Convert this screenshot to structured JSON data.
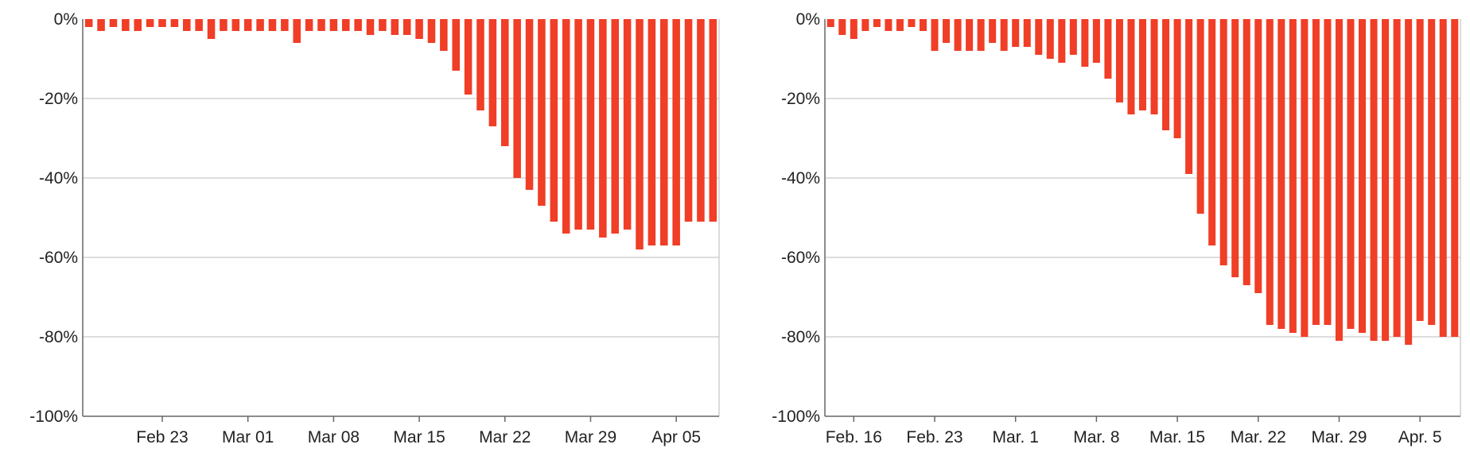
{
  "colors": {
    "bar": "#f03e27",
    "grid": "#d2d2d2",
    "axis": "#666666",
    "text": "#222222"
  },
  "chart_data": [
    {
      "type": "bar",
      "title": "",
      "xlabel": "",
      "ylabel": "",
      "ylim": [
        -100,
        0
      ],
      "grid": true,
      "legend": "none",
      "yticks": [
        "0%",
        "-20%",
        "-40%",
        "-60%",
        "-80%",
        "-100%"
      ],
      "ytick_values": [
        0,
        -20,
        -40,
        -60,
        -80,
        -100
      ],
      "xtick_labels": [
        "Feb 23",
        "Mar 01",
        "Mar 08",
        "Mar 15",
        "Mar 22",
        "Mar 29",
        "Apr 05"
      ],
      "xtick_positions": [
        6,
        13,
        20,
        27,
        34,
        41,
        48
      ],
      "values": [
        -2,
        -3,
        -2,
        -3,
        -3,
        -2,
        -2,
        -2,
        -3,
        -3,
        -5,
        -3,
        -3,
        -3,
        -3,
        -3,
        -3,
        -6,
        -3,
        -3,
        -3,
        -3,
        -3,
        -4,
        -3,
        -4,
        -4,
        -5,
        -6,
        -8,
        -13,
        -19,
        -23,
        -27,
        -32,
        -40,
        -43,
        -47,
        -51,
        -54,
        -53,
        -53,
        -55,
        -54,
        -53,
        -58,
        -57,
        -57,
        -57,
        -51,
        -51,
        -51
      ]
    },
    {
      "type": "bar",
      "title": "",
      "xlabel": "",
      "ylabel": "",
      "ylim": [
        -100,
        0
      ],
      "grid": true,
      "legend": "none",
      "yticks": [
        "0%",
        "-20%",
        "-40%",
        "-60%",
        "-80%",
        "-100%"
      ],
      "ytick_values": [
        0,
        -20,
        -40,
        -60,
        -80,
        -100
      ],
      "xtick_labels": [
        "Feb. 16",
        "Feb. 23",
        "Mar. 1",
        "Mar. 8",
        "Mar. 15",
        "Mar. 22",
        "Mar. 29",
        "Apr. 5"
      ],
      "xtick_positions": [
        2,
        9,
        16,
        23,
        30,
        37,
        44,
        51
      ],
      "values": [
        -2,
        -4,
        -5,
        -3,
        -2,
        -3,
        -3,
        -2,
        -3,
        -8,
        -6,
        -8,
        -8,
        -8,
        -6,
        -8,
        -7,
        -7,
        -9,
        -10,
        -11,
        -9,
        -12,
        -11,
        -15,
        -21,
        -24,
        -23,
        -24,
        -28,
        -30,
        -39,
        -49,
        -57,
        -62,
        -65,
        -67,
        -69,
        -77,
        -78,
        -79,
        -80,
        -77,
        -77,
        -81,
        -78,
        -79,
        -81,
        -81,
        -80,
        -82,
        -76,
        -77,
        -80,
        -80
      ]
    }
  ]
}
